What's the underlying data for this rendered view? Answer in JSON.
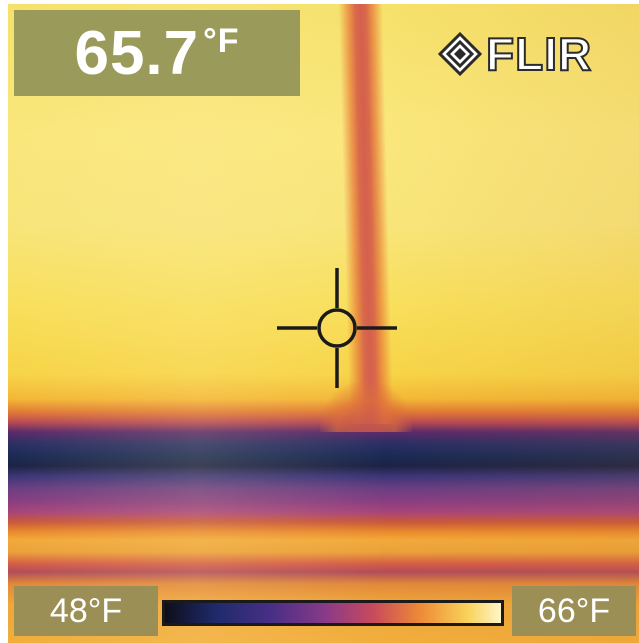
{
  "overlay": {
    "spot_temperature": {
      "value": "65.7",
      "unit": "°F"
    },
    "brand_logo": "FLIR",
    "scale": {
      "min_label": "48°F",
      "max_label": "66°F"
    }
  },
  "colors": {
    "temp_box_bg": "#9a9a5a",
    "scale_box_bg": "#9b8f55",
    "palette": [
      "#0e0e1a",
      "#1e2a6a",
      "#4a2f86",
      "#8a3a88",
      "#c84a5c",
      "#ee8a36",
      "#f8d25a",
      "#fff6c8"
    ]
  },
  "icons": {
    "logo_mark": "flir-diamond-icon",
    "spot_meter": "crosshair-icon"
  }
}
